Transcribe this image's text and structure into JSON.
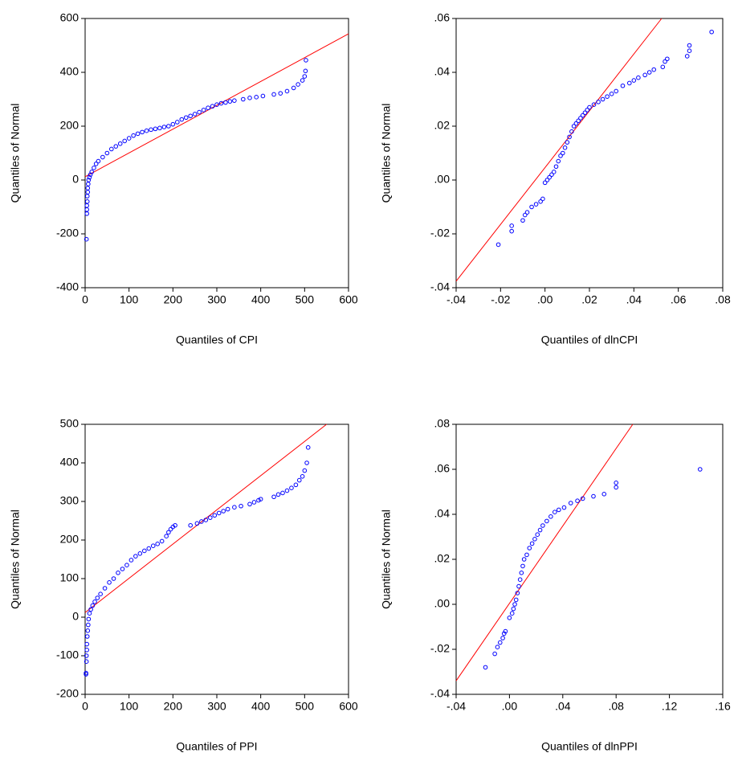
{
  "chart_data": [
    {
      "type": "scatter",
      "xlabel": "Quantiles of CPI",
      "ylabel": "Quantiles of Normal",
      "xlim": [
        0,
        600
      ],
      "ylim": [
        -400,
        600
      ],
      "xticks": [
        0,
        100,
        200,
        300,
        400,
        500,
        600
      ],
      "yticks": [
        -400,
        -200,
        0,
        200,
        400,
        600
      ],
      "color": "#0000ff",
      "x": [
        3,
        4,
        4,
        4,
        5,
        5,
        6,
        6,
        7,
        8,
        10,
        12,
        15,
        20,
        25,
        30,
        40,
        50,
        60,
        70,
        80,
        90,
        100,
        110,
        120,
        130,
        140,
        150,
        160,
        170,
        180,
        190,
        200,
        210,
        220,
        230,
        240,
        250,
        260,
        270,
        280,
        290,
        300,
        310,
        320,
        330,
        340,
        360,
        375,
        390,
        405,
        430,
        445,
        460,
        475,
        485,
        495,
        500,
        502,
        503
      ],
      "values": [
        -220,
        -125,
        -110,
        -95,
        -80,
        -60,
        -45,
        -30,
        -15,
        0,
        10,
        20,
        30,
        45,
        60,
        70,
        85,
        100,
        115,
        125,
        135,
        145,
        155,
        165,
        172,
        178,
        183,
        187,
        190,
        193,
        197,
        200,
        207,
        215,
        225,
        232,
        238,
        245,
        252,
        260,
        268,
        274,
        280,
        285,
        288,
        292,
        295,
        300,
        305,
        308,
        312,
        318,
        322,
        330,
        342,
        355,
        370,
        385,
        405,
        445
      ],
      "reference_line": {
        "x": [
          0,
          600
        ],
        "values": [
          12,
          543
        ],
        "color": "#ff0000"
      }
    },
    {
      "type": "scatter",
      "xlabel": "Quantiles of dlnCPI",
      "ylabel": "Quantiles of Normal",
      "xlim": [
        -0.04,
        0.08
      ],
      "ylim": [
        -0.04,
        0.06
      ],
      "xticks": [
        {
          "value": -0.04,
          "label": "-.04"
        },
        {
          "value": -0.02,
          "label": "-.02"
        },
        {
          "value": 0,
          "label": ".00"
        },
        {
          "value": 0.02,
          "label": ".02"
        },
        {
          "value": 0.04,
          "label": ".04"
        },
        {
          "value": 0.06,
          "label": ".06"
        },
        {
          "value": 0.08,
          "label": ".08"
        }
      ],
      "yticks": [
        {
          "value": -0.04,
          "label": "-.04"
        },
        {
          "value": -0.02,
          "label": "-.02"
        },
        {
          "value": 0,
          "label": ".00"
        },
        {
          "value": 0.02,
          "label": ".02"
        },
        {
          "value": 0.04,
          "label": ".04"
        },
        {
          "value": 0.06,
          "label": ".06"
        }
      ],
      "color": "#0000ff",
      "x": [
        -0.021,
        -0.015,
        -0.015,
        -0.01,
        -0.009,
        -0.008,
        -0.006,
        -0.004,
        -0.002,
        -0.001,
        0.0,
        0.001,
        0.002,
        0.003,
        0.004,
        0.005,
        0.006,
        0.007,
        0.008,
        0.009,
        0.01,
        0.011,
        0.012,
        0.013,
        0.014,
        0.015,
        0.016,
        0.017,
        0.018,
        0.019,
        0.02,
        0.022,
        0.024,
        0.026,
        0.028,
        0.03,
        0.032,
        0.035,
        0.038,
        0.04,
        0.042,
        0.045,
        0.047,
        0.049,
        0.053,
        0.054,
        0.055,
        0.064,
        0.065,
        0.065,
        0.075
      ],
      "values": [
        -0.024,
        -0.019,
        -0.017,
        -0.015,
        -0.013,
        -0.012,
        -0.01,
        -0.009,
        -0.008,
        -0.007,
        -0.001,
        0.0,
        0.001,
        0.002,
        0.003,
        0.005,
        0.007,
        0.009,
        0.01,
        0.012,
        0.014,
        0.016,
        0.018,
        0.02,
        0.021,
        0.022,
        0.023,
        0.024,
        0.025,
        0.026,
        0.027,
        0.028,
        0.029,
        0.03,
        0.031,
        0.032,
        0.033,
        0.035,
        0.036,
        0.037,
        0.038,
        0.039,
        0.04,
        0.041,
        0.042,
        0.044,
        0.045,
        0.046,
        0.048,
        0.05,
        0.055
      ],
      "reference_line": {
        "x": [
          -0.04,
          0.0525
        ],
        "values": [
          -0.0376,
          0.06
        ],
        "color": "#ff0000"
      }
    },
    {
      "type": "scatter",
      "xlabel": "Quantiles of PPI",
      "ylabel": "Quantiles of Normal",
      "xlim": [
        0,
        600
      ],
      "ylim": [
        -200,
        500
      ],
      "xticks": [
        0,
        100,
        200,
        300,
        400,
        500,
        600
      ],
      "yticks": [
        -200,
        -100,
        0,
        100,
        200,
        300,
        400,
        500
      ],
      "color": "#0000ff",
      "x": [
        2,
        2,
        3,
        3,
        4,
        4,
        5,
        6,
        7,
        8,
        10,
        13,
        17,
        22,
        28,
        35,
        45,
        55,
        65,
        75,
        85,
        95,
        105,
        115,
        125,
        135,
        145,
        155,
        165,
        175,
        185,
        190,
        195,
        200,
        205,
        240,
        255,
        265,
        275,
        285,
        295,
        305,
        315,
        325,
        340,
        355,
        375,
        385,
        395,
        400,
        430,
        440,
        450,
        460,
        470,
        480,
        488,
        495,
        500,
        505,
        508
      ],
      "values": [
        -145,
        -148,
        -115,
        -100,
        -85,
        -70,
        -50,
        -35,
        -20,
        -5,
        10,
        20,
        30,
        40,
        50,
        60,
        75,
        90,
        100,
        115,
        125,
        135,
        148,
        158,
        165,
        172,
        178,
        185,
        190,
        197,
        210,
        220,
        228,
        234,
        238,
        238,
        243,
        248,
        252,
        258,
        264,
        270,
        275,
        280,
        285,
        288,
        293,
        298,
        303,
        306,
        312,
        318,
        322,
        328,
        335,
        343,
        355,
        365,
        380,
        400,
        440
      ],
      "reference_line": {
        "x": [
          0,
          550
        ],
        "values": [
          12,
          500
        ],
        "color": "#ff0000"
      }
    },
    {
      "type": "scatter",
      "xlabel": "Quantiles of dlnPPI",
      "ylabel": "Quantiles of Normal",
      "xlim": [
        -0.04,
        0.16
      ],
      "ylim": [
        -0.04,
        0.08
      ],
      "xticks": [
        {
          "value": -0.04,
          "label": "-.04"
        },
        {
          "value": 0,
          "label": ".00"
        },
        {
          "value": 0.04,
          "label": ".04"
        },
        {
          "value": 0.08,
          "label": ".08"
        },
        {
          "value": 0.12,
          "label": ".12"
        },
        {
          "value": 0.16,
          "label": ".16"
        }
      ],
      "yticks": [
        {
          "value": -0.04,
          "label": "-.04"
        },
        {
          "value": -0.02,
          "label": "-.02"
        },
        {
          "value": 0,
          "label": ".00"
        },
        {
          "value": 0.02,
          "label": ".02"
        },
        {
          "value": 0.04,
          "label": ".04"
        },
        {
          "value": 0.06,
          "label": ".06"
        },
        {
          "value": 0.08,
          "label": ".08"
        }
      ],
      "color": "#0000ff",
      "x": [
        -0.018,
        -0.011,
        -0.009,
        -0.007,
        -0.005,
        -0.004,
        -0.003,
        0.0,
        0.002,
        0.003,
        0.004,
        0.005,
        0.006,
        0.007,
        0.008,
        0.009,
        0.01,
        0.011,
        0.013,
        0.015,
        0.017,
        0.019,
        0.021,
        0.023,
        0.025,
        0.028,
        0.031,
        0.034,
        0.037,
        0.041,
        0.046,
        0.051,
        0.055,
        0.063,
        0.071,
        0.08,
        0.08,
        0.143
      ],
      "values": [
        -0.028,
        -0.022,
        -0.019,
        -0.017,
        -0.015,
        -0.013,
        -0.012,
        -0.006,
        -0.004,
        -0.002,
        0.0,
        0.002,
        0.005,
        0.008,
        0.011,
        0.014,
        0.017,
        0.02,
        0.022,
        0.025,
        0.027,
        0.029,
        0.031,
        0.033,
        0.035,
        0.037,
        0.039,
        0.041,
        0.042,
        0.043,
        0.045,
        0.046,
        0.047,
        0.048,
        0.049,
        0.052,
        0.054,
        0.06
      ],
      "reference_line": {
        "x": [
          -0.04,
          0.0925
        ],
        "values": [
          -0.034,
          0.08
        ],
        "color": "#ff0000"
      }
    }
  ]
}
